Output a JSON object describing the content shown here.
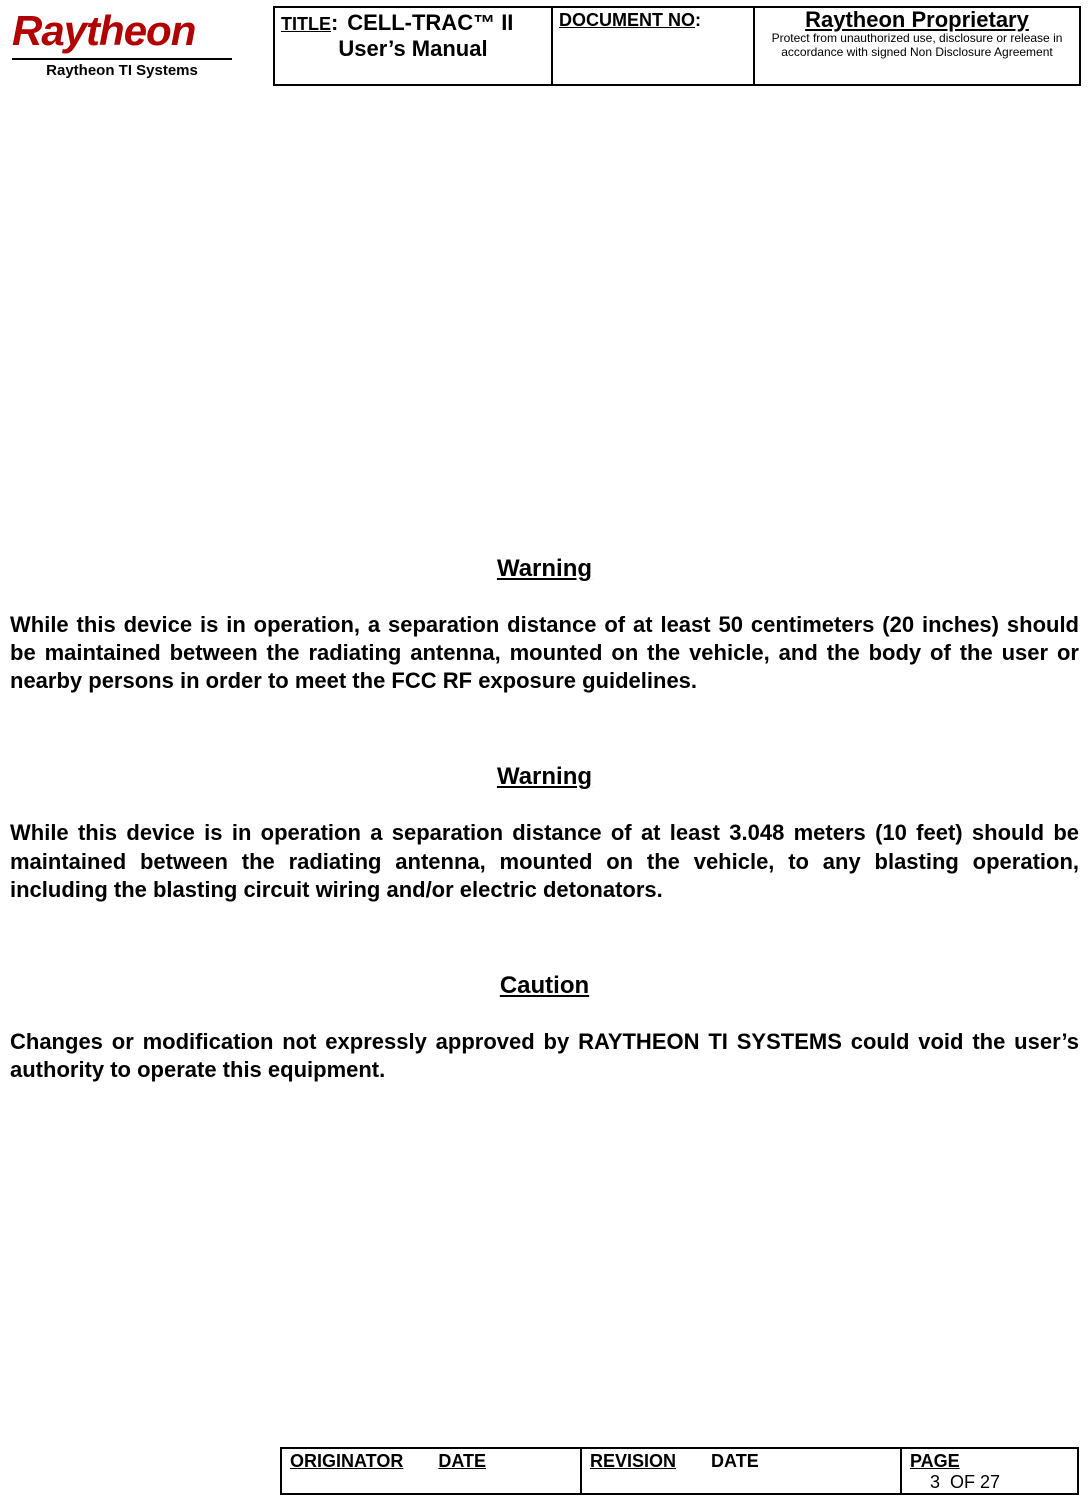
{
  "colors": {
    "logo_red": "#b20000",
    "text": "#000000",
    "background": "#ffffff",
    "border": "#000000"
  },
  "typography": {
    "body_font": "Arial",
    "heading_fontsize_pt": 18,
    "para_fontsize_pt": 16,
    "logo_fontsize_pt": 32
  },
  "header": {
    "logo": {
      "word": "Raytheon",
      "subline": "Raytheon TI Systems"
    },
    "title": {
      "label": "TITLE",
      "colon": ":",
      "value_line1": "CELL-TRAC™ II",
      "value_line2": "User’s Manual"
    },
    "document_no": {
      "label": "DOCUMENT NO",
      "colon": ":"
    },
    "proprietary": {
      "title": "Raytheon Proprietary",
      "sub": "Protect from unauthorized use, disclosure or release in accordance with signed Non Disclosure Agreement"
    }
  },
  "sections": [
    {
      "heading": "Warning",
      "para": "While this device is in operation, a separation distance of at least 50 centimeters (20 inches) should be maintained between the radiating antenna, mounted on the vehicle, and the body of the user or nearby persons in order to meet the FCC RF exposure guidelines."
    },
    {
      "heading": "Warning",
      "para": "While this device is in operation a separation distance of at least 3.048 meters (10 feet) should be maintained between the radiating antenna, mounted on the vehicle, to any blasting operation, including the blasting circuit wiring and/or electric detonators."
    },
    {
      "heading": "Caution",
      "para": "Changes or modification not expressly approved by RAYTHEON TI SYSTEMS could void the user’s authority to operate this equipment."
    }
  ],
  "footer": {
    "originator_label": "ORIGINATOR",
    "date_label": "DATE",
    "revision_label": "REVISION",
    "date2_label": " DATE",
    "page_label": "PAGE",
    "page_current": "3",
    "page_of_text": "OF 27"
  }
}
